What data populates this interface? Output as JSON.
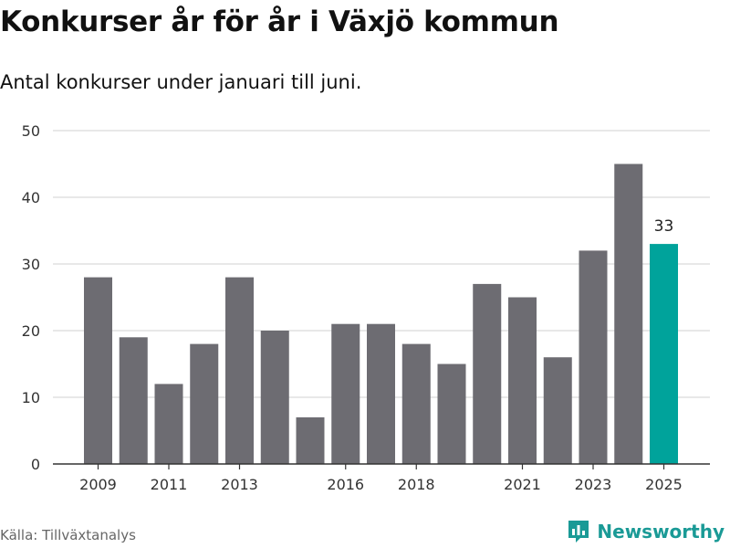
{
  "header": {
    "title": "Konkurser år för år i Växjö kommun",
    "subtitle": "Antal konkurser under januari till juni."
  },
  "footer": {
    "source": "Källa: Tillväxtanalys",
    "brand": "Newsworthy",
    "brand_icon": "bar-chart-logo-icon"
  },
  "colors": {
    "bar": "#6d6c72",
    "highlight": "#00a39b",
    "grid": "#d9d9d9",
    "axis": "#333333",
    "brand": "#1a9a96"
  },
  "chart_data": {
    "type": "bar",
    "categories": [
      "2009",
      "2010",
      "2011",
      "2012",
      "2013",
      "2014",
      "2015",
      "2016",
      "2017",
      "2018",
      "2019",
      "2020",
      "2021",
      "2022",
      "2023",
      "2024",
      "2025"
    ],
    "values": [
      28,
      19,
      12,
      18,
      28,
      20,
      7,
      21,
      21,
      18,
      15,
      27,
      25,
      16,
      32,
      45,
      33
    ],
    "highlight_category": "2025",
    "data_labels": [
      {
        "category": "2025",
        "text": "33"
      }
    ],
    "x_tick_labels": [
      "2009",
      "2011",
      "2013",
      "2016",
      "2018",
      "2021",
      "2023",
      "2025"
    ],
    "y_ticks": [
      0,
      10,
      20,
      30,
      40,
      50
    ],
    "ylim": [
      0,
      50
    ],
    "xlabel": "",
    "ylabel": "",
    "grid": true
  }
}
